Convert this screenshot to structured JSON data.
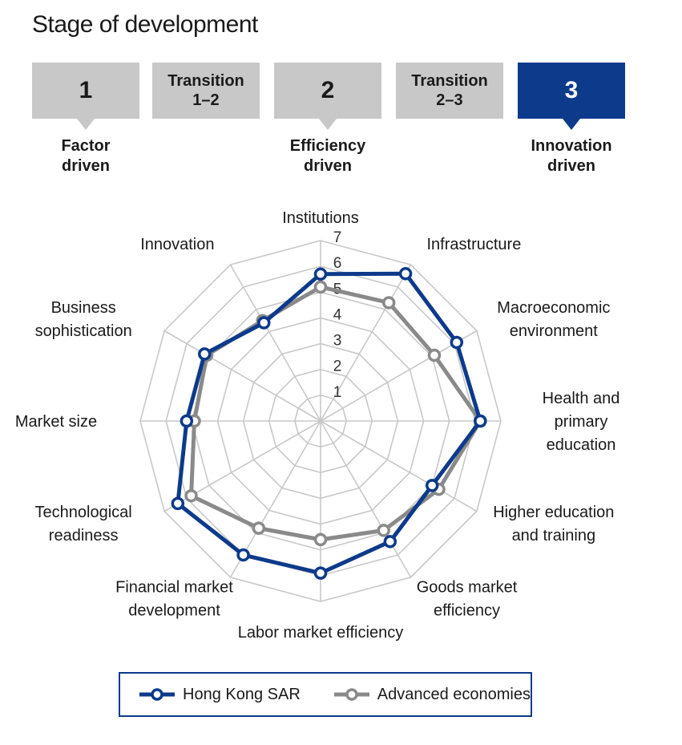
{
  "title": "Stage of development",
  "stages": [
    {
      "box": "1",
      "kind": "num",
      "label": "Factor\ndriven",
      "active": false
    },
    {
      "box": "Transition\n1–2",
      "kind": "trans",
      "label": "",
      "active": false
    },
    {
      "box": "2",
      "kind": "num",
      "label": "Efficiency\ndriven",
      "active": false
    },
    {
      "box": "Transition\n2–3",
      "kind": "trans",
      "label": "",
      "active": false
    },
    {
      "box": "3",
      "kind": "num",
      "label": "Innovation\ndriven",
      "active": true
    }
  ],
  "colors": {
    "accent": "#0d3a8a",
    "inactive_box": "#c8c8c8",
    "series_1": "#0d3a8a",
    "series_2": "#8a8a8a",
    "grid": "#c8c8c8"
  },
  "chart_data": {
    "type": "radar",
    "categories": [
      "Institutions",
      "Infrastructure",
      "Macroeconomic\nenvironment",
      "Health and\nprimary\neducation",
      "Higher education\nand training",
      "Goods market\nefficiency",
      "Labor market efficiency",
      "Financial market\ndevelopment",
      "Technological\nreadiness",
      "Market size",
      "Business\nsophistication",
      "Innovation"
    ],
    "rlim": [
      1,
      7
    ],
    "ticks": [
      "1",
      "2",
      "3",
      "4",
      "5",
      "6",
      "7"
    ],
    "series": [
      {
        "name": "Hong Kong SAR",
        "values": [
          5.7,
          6.6,
          6.1,
          6.2,
          5.0,
          5.4,
          5.9,
          6.0,
          6.4,
          5.2,
          5.2,
          4.4
        ]
      },
      {
        "name": "Advanced economies",
        "values": [
          5.2,
          5.3,
          5.1,
          6.2,
          5.3,
          4.9,
          4.6,
          4.8,
          5.8,
          4.9,
          5.1,
          4.5
        ]
      }
    ],
    "legend": "bottom"
  }
}
